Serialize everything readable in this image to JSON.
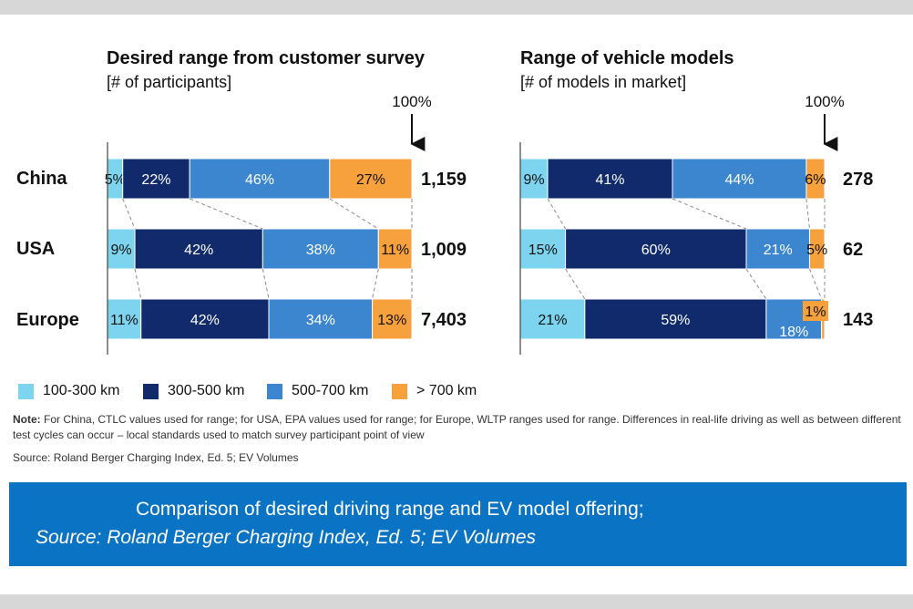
{
  "colors": {
    "100-300 km": "#7dd4ef",
    "300-500 km": "#102a6b",
    "500-700 km": "#3c86cf",
    "> 700 km": "#f7a13d"
  },
  "chart_data": [
    {
      "type": "bar",
      "stacked": "100%",
      "orientation": "horizontal",
      "title": "Desired range from customer survey",
      "subtitle": "[# of participants]",
      "marker_label": "100%",
      "categories": [
        "China",
        "USA",
        "Europe"
      ],
      "segment_labels": [
        "100-300 km",
        "300-500 km",
        "500-700 km",
        "> 700 km"
      ],
      "rows": [
        {
          "category": "China",
          "values": [
            5,
            22,
            46,
            27
          ],
          "labels": [
            "5%",
            "22%",
            "46%",
            "27%"
          ],
          "total": "1,159"
        },
        {
          "category": "USA",
          "values": [
            9,
            42,
            38,
            11
          ],
          "labels": [
            "9%",
            "42%",
            "38%",
            "11%"
          ],
          "total": "1,009"
        },
        {
          "category": "Europe",
          "values": [
            11,
            42,
            34,
            13
          ],
          "labels": [
            "11%",
            "42%",
            "34%",
            "13%"
          ],
          "total": "7,403"
        }
      ]
    },
    {
      "type": "bar",
      "stacked": "100%",
      "orientation": "horizontal",
      "title": "Range of vehicle models",
      "subtitle": "[# of models in market]",
      "marker_label": "100%",
      "categories": [
        "China",
        "USA",
        "Europe"
      ],
      "segment_labels": [
        "100-300 km",
        "300-500 km",
        "500-700 km",
        "> 700 km"
      ],
      "rows": [
        {
          "category": "China",
          "values": [
            9,
            41,
            44,
            6
          ],
          "labels": [
            "9%",
            "41%",
            "44%",
            "6%"
          ],
          "total": "278"
        },
        {
          "category": "USA",
          "values": [
            15,
            60,
            21,
            5
          ],
          "labels": [
            "15%",
            "60%",
            "21%",
            "5%"
          ],
          "total": "62"
        },
        {
          "category": "Europe",
          "values": [
            21,
            59,
            18,
            1
          ],
          "labels": [
            "21%",
            "59%",
            "18%",
            "1%"
          ],
          "total": "143"
        }
      ]
    }
  ],
  "legend": [
    "100-300 km",
    "300-500 km",
    "500-700 km",
    "> 700 km"
  ],
  "note": {
    "label": "Note:",
    "text": " For China, CTLC values used for range; for USA, EPA values used for range; for Europe, WLTP ranges used for range. Differences in real-life driving as well as between different test cycles can occur – local standards used to match survey participant point of view"
  },
  "source": "Source: Roland Berger Charging Index, Ed. 5; EV Volumes",
  "caption": {
    "line1": "Comparison of desired driving range and EV model offering;",
    "line2": "Source: Roland Berger Charging Index, Ed. 5; EV Volumes"
  }
}
